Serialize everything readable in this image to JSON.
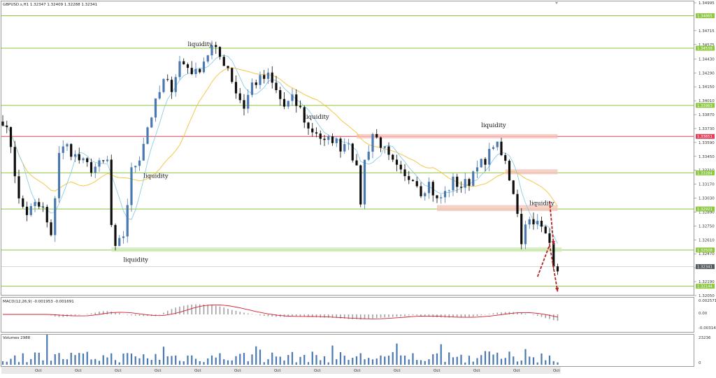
{
  "window": {
    "header": "GBPUSD.s,H1  1.32347 1.32409 1.32288 1.32341"
  },
  "colors": {
    "bull": "#4a78b0",
    "bear": "#0d0d0d",
    "green_level": "#8cc840",
    "red_level": "#e0405a",
    "ma_fast": "#7fc6e6",
    "ma_slow": "#f2c84a",
    "macd_signal": "#d61c2c",
    "arrow": "#b32020",
    "zone_red": "#f5c0b8",
    "zone_green": "#cde8b5"
  },
  "price_axis": {
    "max": 1.34995,
    "min": 1.3205,
    "ticks": [
      "1.34995",
      "1.34715",
      "1.34575",
      "1.34430",
      "1.34290",
      "1.34150",
      "1.34010",
      "1.33870",
      "1.33730",
      "1.33590",
      "1.33450",
      "1.33310",
      "1.33170",
      "1.33030",
      "1.32890",
      "1.32750",
      "1.32610",
      "1.32470",
      "1.32330",
      "1.32190",
      "1.32050"
    ]
  },
  "levels": [
    {
      "price": 1.34865,
      "label": "1.34865",
      "color": "#8cc840"
    },
    {
      "price": 1.34538,
      "label": "1.34538",
      "color": "#8cc840"
    },
    {
      "price": 1.33963,
      "label": "1.33963",
      "color": "#8cc840"
    },
    {
      "price": 1.33651,
      "label": "1.33651",
      "color": "#e0405a"
    },
    {
      "price": 1.33284,
      "label": "1.33284",
      "color": "#8cc840"
    },
    {
      "price": 1.32921,
      "label": "1.32921",
      "color": "#8cc840"
    },
    {
      "price": 1.32508,
      "label": "1.32508",
      "color": "#8cc840"
    },
    {
      "price": 1.32144,
      "label": "1.32144",
      "color": "#8cc840"
    }
  ],
  "current_price": {
    "price": 1.32341,
    "label": "1.32341"
  },
  "annotations": [
    {
      "text": "liquidity",
      "price": 1.3456,
      "bar": 46
    },
    {
      "text": "liquidity",
      "price": 1.33235,
      "bar": 35
    },
    {
      "text": "liquidity",
      "price": 1.3383,
      "bar": 75
    },
    {
      "text": "liquidity",
      "price": 1.33745,
      "bar": 119
    },
    {
      "text": "liquidity",
      "price": 1.3296,
      "bar": 131
    },
    {
      "text": "liquidity",
      "price": 1.3239,
      "bar": 30
    }
  ],
  "zones": [
    {
      "from_bar": 88,
      "to_bar": 138,
      "top": 1.33675,
      "bottom": 1.3363,
      "kind": "red"
    },
    {
      "from_bar": 125,
      "to_bar": 138,
      "top": 1.3332,
      "bottom": 1.3327,
      "kind": "red"
    },
    {
      "from_bar": 108,
      "to_bar": 138,
      "top": 1.3296,
      "bottom": 1.329,
      "kind": "red"
    },
    {
      "from_bar": 27,
      "to_bar": 139,
      "top": 1.32535,
      "bottom": 1.3249,
      "kind": "green"
    }
  ],
  "arrows": [
    {
      "points": [
        [
          133,
          1.3224
        ],
        [
          136,
          1.3256
        ],
        [
          138,
          1.3209
        ]
      ]
    },
    {
      "points": [
        [
          136,
          1.33
        ],
        [
          137,
          1.3256
        ]
      ]
    }
  ],
  "macd": {
    "label": "MACD(12,26,9) -0.001953 -0.001691",
    "ticks": [
      "0.002571",
      "0.00",
      "-0.003148"
    ]
  },
  "volumes": {
    "label": "Volumes 2988",
    "ticks": [
      "23236",
      "0"
    ]
  },
  "time_axis": {
    "labels": [
      "Oct",
      "Oct",
      "Oct",
      "Oct",
      "Oct",
      "Oct",
      "Oct",
      "Oct",
      "Oct",
      "Oct",
      "Oct",
      "Oct",
      "Oct",
      "Oct"
    ]
  }
}
